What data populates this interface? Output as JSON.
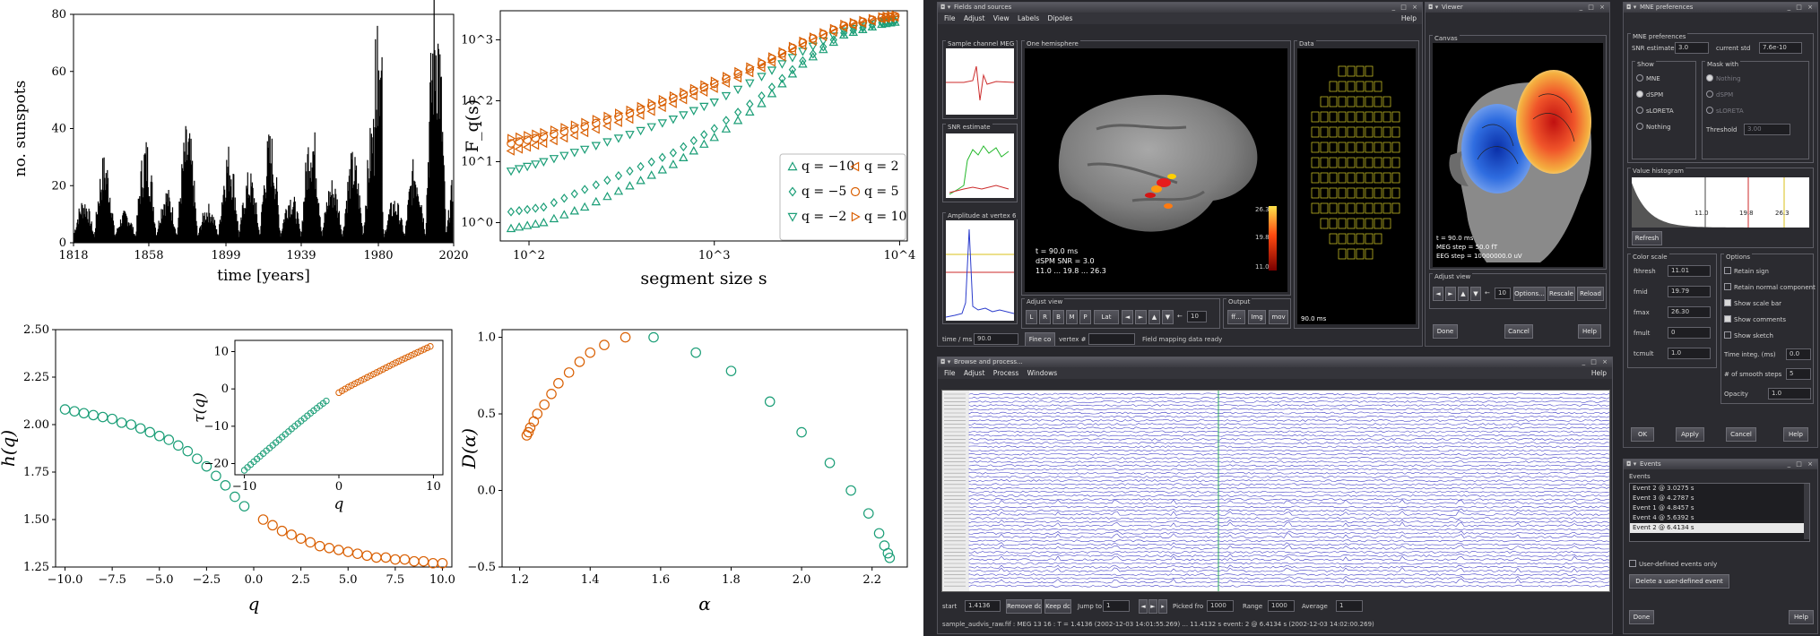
{
  "figure": {
    "panel_a": {
      "xlabel": "time [years]",
      "ylabel": "no. sunspots",
      "xticks": [
        "1818",
        "1858",
        "1899",
        "1939",
        "1980",
        "2020"
      ],
      "yticks": [
        "0",
        "20",
        "40",
        "60",
        "80"
      ]
    },
    "panel_b": {
      "xlabel": "segment size s",
      "ylabel": "F_q(s)",
      "xticks": [
        "10^2",
        "10^3",
        "10^4"
      ],
      "yticks": [
        "10^0",
        "10^1",
        "10^2",
        "10^3"
      ],
      "legend": [
        "q = −10",
        "q = 2",
        "q = −5",
        "q = 5",
        "q = −2",
        "q = 10"
      ]
    },
    "panel_c": {
      "xlabel": "q",
      "ylabel": "h(q)",
      "xticks": [
        "−10.0",
        "−7.5",
        "−5.0",
        "−2.5",
        "0.0",
        "2.5",
        "5.0",
        "7.5",
        "10.0"
      ],
      "yticks": [
        "1.25",
        "1.50",
        "1.75",
        "2.00",
        "2.25",
        "2.50"
      ],
      "inset": {
        "xlabel": "q",
        "ylabel": "τ(q)",
        "xticks": [
          "−10",
          "0",
          "10"
        ],
        "yticks": [
          "−20",
          "−10",
          "0",
          "10"
        ]
      }
    },
    "panel_d": {
      "xlabel": "α",
      "ylabel": "D(α)",
      "xticks": [
        "1.2",
        "1.4",
        "1.6",
        "1.8",
        "2.0",
        "2.2"
      ],
      "yticks": [
        "−0.5",
        "0.0",
        "0.5",
        "1.0"
      ]
    }
  },
  "chart_data": [
    {
      "type": "bar",
      "title": "",
      "xlabel": "time [years]",
      "ylabel": "no. sunspots",
      "xlim": [
        1818,
        2020
      ],
      "ylim": [
        0,
        80
      ],
      "note": "daily sunspot counts, spiky series",
      "series": [
        {
          "values_sample": [
            12,
            25,
            8,
            30,
            15,
            34,
            10,
            28,
            20,
            32,
            14,
            36,
            18,
            26,
            38,
            12,
            24,
            76,
            22,
            10
          ]
        }
      ]
    },
    {
      "type": "scatter",
      "xlabel": "segment size s",
      "ylabel": "F_q(s)",
      "xscale": "log",
      "yscale": "log",
      "xlim": [
        70,
        11000
      ],
      "ylim": [
        0.5,
        3000
      ],
      "legend_position": "right",
      "series": [
        {
          "name": "q = −10",
          "color": "#1b9e77",
          "marker": "triangle-up",
          "x": [
            80,
            120,
            200,
            350,
            600,
            1000,
            1800,
            3000,
            5000,
            8000,
            10000
          ],
          "y": [
            0.8,
            1.0,
            1.8,
            4,
            9,
            25,
            90,
            400,
            1200,
            1800,
            2000
          ]
        },
        {
          "name": "q = −5",
          "color": "#1b9e77",
          "marker": "diamond",
          "x": [
            80,
            120,
            200,
            350,
            600,
            1000,
            1800,
            3000,
            5000,
            8000,
            10000
          ],
          "y": [
            1.5,
            1.8,
            3.5,
            7,
            14,
            35,
            120,
            450,
            1300,
            1900,
            2100
          ]
        },
        {
          "name": "q = −2",
          "color": "#1b9e77",
          "marker": "triangle-down",
          "x": [
            80,
            120,
            200,
            350,
            600,
            1000,
            1800,
            3000,
            5000,
            8000,
            10000
          ],
          "y": [
            7,
            10,
            16,
            28,
            50,
            95,
            250,
            650,
            1400,
            2000,
            2200
          ]
        },
        {
          "name": "q = 2",
          "color": "#d95f02",
          "marker": "triangle-left",
          "x": [
            80,
            120,
            200,
            350,
            600,
            1000,
            1800,
            3000,
            5000,
            8000,
            10000
          ],
          "y": [
            15,
            20,
            30,
            50,
            90,
            160,
            350,
            800,
            1600,
            2200,
            2400
          ]
        },
        {
          "name": "q = 5",
          "color": "#d95f02",
          "marker": "circle",
          "x": [
            80,
            120,
            200,
            350,
            600,
            1000,
            1800,
            3000,
            5000,
            8000,
            10000
          ],
          "y": [
            20,
            26,
            38,
            62,
            110,
            190,
            400,
            900,
            1700,
            2300,
            2500
          ]
        },
        {
          "name": "q = 10",
          "color": "#d95f02",
          "marker": "triangle-right",
          "x": [
            80,
            120,
            200,
            350,
            600,
            1000,
            1800,
            3000,
            5000,
            8000,
            10000
          ],
          "y": [
            24,
            30,
            44,
            70,
            120,
            210,
            430,
            950,
            1800,
            2400,
            2600
          ]
        }
      ]
    },
    {
      "type": "scatter",
      "xlabel": "q",
      "ylabel": "h(q)",
      "xlim": [
        -10.5,
        10.5
      ],
      "ylim": [
        1.25,
        2.5
      ],
      "series": [
        {
          "name": "q<0",
          "color": "#1b9e77",
          "x": [
            -10,
            -9.5,
            -9,
            -8.5,
            -8,
            -7.5,
            -7,
            -6.5,
            -6,
            -5.5,
            -5,
            -4.5,
            -4,
            -3.5,
            -3,
            -2.5,
            -2,
            -1.5,
            -1,
            -0.5
          ],
          "y": [
            2.08,
            2.07,
            2.06,
            2.05,
            2.04,
            2.03,
            2.01,
            2.0,
            1.98,
            1.96,
            1.94,
            1.92,
            1.89,
            1.86,
            1.82,
            1.78,
            1.73,
            1.68,
            1.62,
            1.57
          ]
        },
        {
          "name": "q>0",
          "color": "#d95f02",
          "x": [
            0.5,
            1,
            1.5,
            2,
            2.5,
            3,
            3.5,
            4,
            4.5,
            5,
            5.5,
            6,
            6.5,
            7,
            7.5,
            8,
            8.5,
            9,
            9.5,
            10
          ],
          "y": [
            1.5,
            1.47,
            1.44,
            1.42,
            1.4,
            1.38,
            1.36,
            1.35,
            1.34,
            1.33,
            1.32,
            1.31,
            1.3,
            1.3,
            1.29,
            1.29,
            1.28,
            1.28,
            1.27,
            1.27
          ]
        }
      ],
      "inset": {
        "xlabel": "q",
        "ylabel": "τ(q)",
        "xlim": [
          -11,
          11
        ],
        "ylim": [
          -23,
          13
        ],
        "series": [
          {
            "color": "#1b9e77",
            "x": [
              -10,
              -9,
              -8,
              -7,
              -6,
              -5,
              -4,
              -3,
              -2,
              -1
            ],
            "y": [
              -21.8,
              -19.5,
              -17.3,
              -15.1,
              -12.9,
              -10.7,
              -8.6,
              -6.5,
              -4.5,
              -2.6
            ]
          },
          {
            "color": "#d95f02",
            "x": [
              0,
              1,
              2,
              3,
              4,
              5,
              6,
              7,
              8,
              9,
              10
            ],
            "y": [
              -1,
              0.5,
              1.8,
              3.1,
              4.4,
              5.7,
              7,
              8.2,
              9.4,
              10.6,
              11.8
            ]
          }
        ]
      }
    },
    {
      "type": "scatter",
      "xlabel": "α",
      "ylabel": "D(α)",
      "xlim": [
        1.15,
        2.3
      ],
      "ylim": [
        -0.5,
        1.05
      ],
      "series": [
        {
          "name": "q>0",
          "color": "#d95f02",
          "x": [
            1.22,
            1.225,
            1.23,
            1.24,
            1.25,
            1.27,
            1.29,
            1.31,
            1.34,
            1.37,
            1.4,
            1.44,
            1.5
          ],
          "y": [
            0.36,
            0.38,
            0.41,
            0.45,
            0.5,
            0.56,
            0.63,
            0.7,
            0.77,
            0.84,
            0.9,
            0.95,
            1.0
          ]
        },
        {
          "name": "q<0",
          "color": "#1b9e77",
          "x": [
            1.58,
            1.7,
            1.8,
            1.91,
            2.0,
            2.08,
            2.14,
            2.19,
            2.22,
            2.235,
            2.245,
            2.25
          ],
          "y": [
            1.0,
            0.9,
            0.78,
            0.58,
            0.38,
            0.18,
            0.0,
            -0.15,
            -0.28,
            -0.36,
            -0.41,
            -0.44
          ]
        }
      ]
    }
  ],
  "fields_window": {
    "title": "Fields and sources",
    "menu": [
      "File",
      "Adjust",
      "View",
      "Labels",
      "Dipoles"
    ],
    "help": "Help",
    "groups": {
      "sample": "Sample channel MEG",
      "snr": "SNR estimate",
      "amp": "Amplitude at vertex 6",
      "hemi": "One hemisphere",
      "data": "Data",
      "adjust": "Adjust view",
      "output": "Output"
    },
    "overlay": [
      "t = 90.0 ms",
      "dSPM     SNR = 3.0",
      "11.0 ... 19.8 ... 26.3"
    ],
    "colorbar": [
      "26.3",
      "19.8",
      "11.0"
    ],
    "data_time": "90.0 ms",
    "adjust_buttons": [
      "L",
      "R",
      "B",
      "M",
      "P",
      "Lat",
      "◄",
      "►",
      "▲",
      "▼",
      "←",
      "10"
    ],
    "output_buttons": [
      "ff...",
      "Img",
      "mov"
    ],
    "bottom": {
      "time_label": "time / ms",
      "time_value": "90.0",
      "fine_label": "Fine co",
      "vertex_label": "vertex #",
      "status": "Field mapping data ready"
    }
  },
  "viewer_window": {
    "title": "Viewer",
    "canvas_label": "Canvas",
    "overlay": [
      "t = 90.0 ms",
      "MEG step = 50.0 fT",
      "EEG step = 10000000.0 uV"
    ],
    "adjust_label": "Adjust view",
    "adjust_buttons": [
      "◄",
      "►",
      "▲",
      "▼",
      "←",
      "10",
      "Options...",
      "Rescale",
      "Reload"
    ],
    "footer": [
      "Done",
      "Cancel",
      "Help"
    ]
  },
  "prefs_window": {
    "title": "MNE preferences",
    "section": "MNE preferences",
    "snr_label": "SNR estimate",
    "snr_value": "3.0",
    "curr_label": "current std",
    "curr_value": "7.6e-10",
    "show_label": "Show",
    "show_options": [
      "MNE",
      "dSPM",
      "sLORETA",
      "Nothing"
    ],
    "mask_label": "Mask with",
    "mask_options": [
      "Nothing",
      "dSPM",
      "sLORETA"
    ],
    "threshold_label": "Threshold",
    "threshold_value": "3.00",
    "hist_label": "Value histogram",
    "hist_ticks": [
      "11.0",
      "19.8",
      "26.3"
    ],
    "refresh": "Refresh",
    "colorscale_label": "Color scale",
    "cs_rows": [
      [
        "fthresh",
        "11.01"
      ],
      [
        "fmid",
        "19.79"
      ],
      [
        "fmax",
        "26.30"
      ],
      [
        "fmult",
        "0"
      ],
      [
        "tcmult",
        "1.0"
      ]
    ],
    "options_label": "Options",
    "opts": [
      "Retain sign",
      "Retain normal component o",
      "Show scale bar",
      "Show comments",
      "Show sketch"
    ],
    "timeinteg_label": "Time integ. (ms)",
    "timeinteg_value": "0.0",
    "smooth_label": "# of smooth steps",
    "smooth_value": "5",
    "opacity_label": "Opacity",
    "opacity_value": "1.0",
    "footer": [
      "OK",
      "Apply",
      "Cancel",
      "Help"
    ]
  },
  "browse_window": {
    "title": "Browse and process...",
    "menu": [
      "File",
      "Adjust",
      "Process",
      "Windows"
    ],
    "help": "Help",
    "bottom": {
      "start_label": "start",
      "start_value": "1.4136",
      "remove_dc": "Remove dc",
      "keep_dc": "Keep dc",
      "jump_label": "Jump to",
      "jump_value": "1",
      "picked_label": "Picked fro",
      "picked_value": "1000",
      "range_label": "Range",
      "range_value": "1000",
      "average_label": "Average",
      "average_value": "1"
    },
    "status": "sample_audvis_raw.fif : MEG 13 16 : T = 1.4136 (2002-12-03 14:01:55.269) ... 11.4132 s   event: 2 @ 6.4134 s (2002-12-03 14:02:00.269)"
  },
  "events_window": {
    "title": "Events",
    "label": "Events",
    "items": [
      "Event 2 @ 3.0275 s",
      "Event 3 @ 4.2787 s",
      "Event 1 @ 4.8457 s",
      "Event 4 @ 5.6392 s",
      "Event 2 @ 6.4134 s"
    ],
    "selected_index": 4,
    "user_only": "User-defined events only",
    "delete_btn": "Delete a user-defined event",
    "done": "Done",
    "help": "Help"
  }
}
